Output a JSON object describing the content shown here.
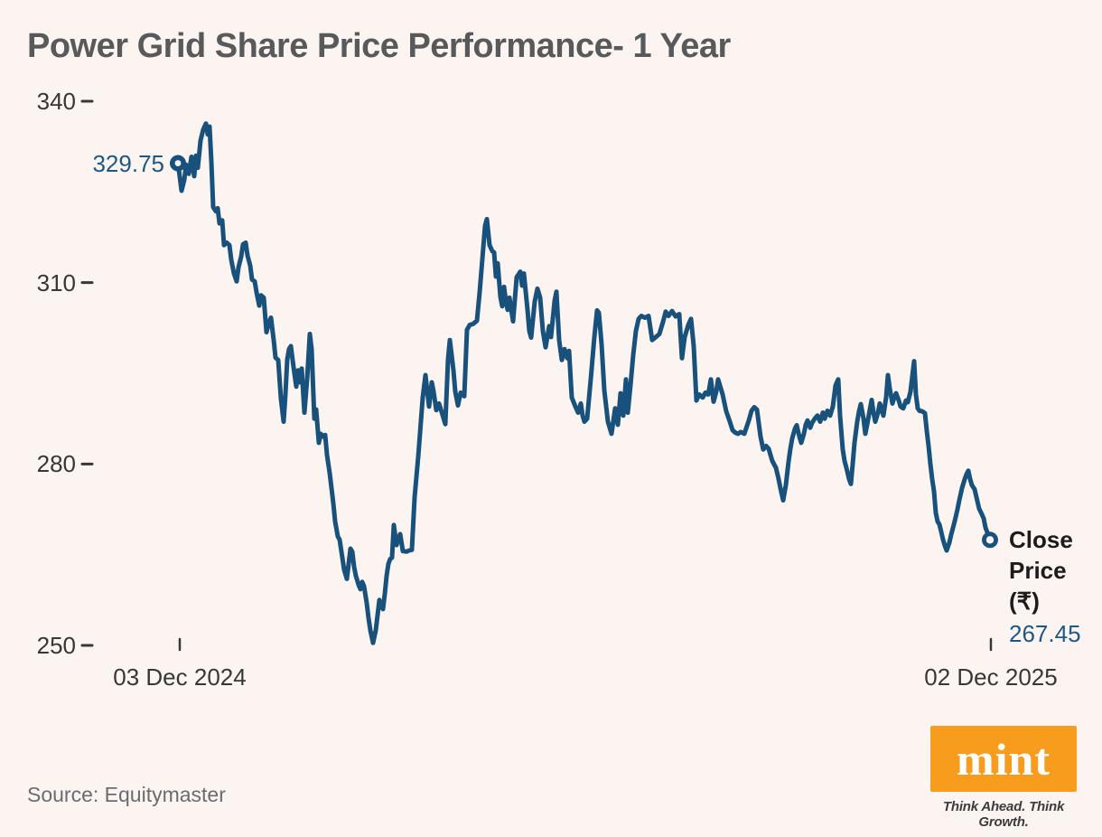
{
  "title": "Power Grid Share Price Performance- 1 Year",
  "source": "Source: Equitymaster",
  "logo": {
    "text": "mint",
    "tagline": "Think Ahead. Think Growth."
  },
  "close_price": {
    "label_lines": [
      "Close",
      "Price",
      "(₹)"
    ],
    "value": "267.45"
  },
  "colors": {
    "line": "#17517C",
    "background": "#FBF4F1",
    "accent_blue": "#1D5887",
    "title_gray": "#58595B",
    "axis_text": "#3A3637",
    "mint_orange": "#F89C1E"
  },
  "chart_data": {
    "type": "line",
    "title": "Power Grid Share Price Performance- 1 Year",
    "series_name": "Close Price (₹)",
    "x_start_label": "03 Dec 2024",
    "x_end_label": "02 Dec 2025",
    "x_domain": [
      197,
      1096
    ],
    "x_unit": "linear time position between start and end date labels",
    "y_ticks": [
      340,
      310,
      280,
      250
    ],
    "ylim": [
      248,
      342
    ],
    "start_label": "329.75",
    "start_value": 329.75,
    "end_value": 267.45,
    "grid": false,
    "legend": false,
    "points": [
      [
        197,
        329.75
      ],
      [
        199,
        327.5
      ],
      [
        201,
        325.2
      ],
      [
        204,
        327
      ],
      [
        206,
        329.5
      ],
      [
        209,
        328
      ],
      [
        212,
        330.8
      ],
      [
        215,
        327.6
      ],
      [
        217,
        331
      ],
      [
        219,
        329
      ],
      [
        222,
        333.5
      ],
      [
        225,
        335.3
      ],
      [
        228,
        336.3
      ],
      [
        230,
        334.5
      ],
      [
        232,
        335.8
      ],
      [
        234,
        330
      ],
      [
        236,
        322.5
      ],
      [
        239,
        321.8
      ],
      [
        241,
        322.3
      ],
      [
        243,
        319.8
      ],
      [
        246,
        320.3
      ],
      [
        248,
        316.2
      ],
      [
        251,
        316.6
      ],
      [
        254,
        316.2
      ],
      [
        256,
        313.8
      ],
      [
        259,
        311.5
      ],
      [
        262,
        310.2
      ],
      [
        264,
        312.5
      ],
      [
        267,
        314.3
      ],
      [
        269,
        316.3
      ],
      [
        272,
        316.6
      ],
      [
        274,
        314.5
      ],
      [
        277,
        312.8
      ],
      [
        279,
        310.5
      ],
      [
        282,
        310.2
      ],
      [
        284,
        308.4
      ],
      [
        287,
        306.2
      ],
      [
        289,
        307.9
      ],
      [
        292,
        307.5
      ],
      [
        295,
        301.8
      ],
      [
        298,
        303.5
      ],
      [
        300,
        304.2
      ],
      [
        303,
        300.5
      ],
      [
        305,
        297.6
      ],
      [
        308,
        297.2
      ],
      [
        311,
        290.8
      ],
      [
        314,
        287
      ],
      [
        316,
        291.5
      ],
      [
        318,
        297.3
      ],
      [
        320,
        299
      ],
      [
        322,
        299.5
      ],
      [
        325,
        296
      ],
      [
        328,
        292.8
      ],
      [
        330,
        295.5
      ],
      [
        332,
        293.5
      ],
      [
        334,
        295.8
      ],
      [
        337,
        288.5
      ],
      [
        340,
        294
      ],
      [
        343,
        301.5
      ],
      [
        345,
        299
      ],
      [
        348,
        287.5
      ],
      [
        350,
        289
      ],
      [
        353,
        283.5
      ],
      [
        355,
        285
      ],
      [
        358,
        284.5
      ],
      [
        360,
        284.8
      ],
      [
        362,
        281.5
      ],
      [
        365,
        278.5
      ],
      [
        367,
        276
      ],
      [
        369,
        273.5
      ],
      [
        371,
        270.5
      ],
      [
        374,
        268
      ],
      [
        376,
        267.5
      ],
      [
        379,
        264.5
      ],
      [
        381,
        262.5
      ],
      [
        384,
        261
      ],
      [
        386,
        263.5
      ],
      [
        388,
        266
      ],
      [
        390,
        265.5
      ],
      [
        392,
        263
      ],
      [
        394,
        261.5
      ],
      [
        397,
        260
      ],
      [
        399,
        259.3
      ],
      [
        401,
        260.5
      ],
      [
        403,
        259.8
      ],
      [
        406,
        257
      ],
      [
        408,
        254.5
      ],
      [
        410,
        252.5
      ],
      [
        413,
        250.4
      ],
      [
        416,
        252.5
      ],
      [
        418,
        255
      ],
      [
        420,
        257.5
      ],
      [
        422,
        256.5
      ],
      [
        424,
        256
      ],
      [
        426,
        258.5
      ],
      [
        428,
        261.5
      ],
      [
        430,
        263.5
      ],
      [
        432,
        264.3
      ],
      [
        434,
        264.5
      ],
      [
        436,
        269.9
      ],
      [
        439,
        266.6
      ],
      [
        443,
        268.4
      ],
      [
        446,
        265.6
      ],
      [
        450,
        265.5
      ],
      [
        453,
        265.7
      ],
      [
        456,
        265.8
      ],
      [
        459,
        274.5
      ],
      [
        463,
        281.2
      ],
      [
        468,
        291
      ],
      [
        471,
        294.7
      ],
      [
        475,
        289.5
      ],
      [
        478,
        293.5
      ],
      [
        480,
        292
      ],
      [
        483,
        288.9
      ],
      [
        486,
        290
      ],
      [
        490,
        288.1
      ],
      [
        493,
        286.6
      ],
      [
        496,
        297.3
      ],
      [
        498,
        300.5
      ],
      [
        502,
        295.5
      ],
      [
        504,
        292
      ],
      [
        507,
        289.7
      ],
      [
        510,
        291.8
      ],
      [
        514,
        291.2
      ],
      [
        517,
        302.2
      ],
      [
        520,
        303
      ],
      [
        524,
        303.2
      ],
      [
        528,
        303.7
      ],
      [
        531,
        308.4
      ],
      [
        534,
        313.9
      ],
      [
        537,
        319.4
      ],
      [
        539,
        320.5
      ],
      [
        542,
        316.2
      ],
      [
        545,
        315.2
      ],
      [
        547,
        315
      ],
      [
        549,
        311
      ],
      [
        551,
        313.2
      ],
      [
        554,
        307.6
      ],
      [
        556,
        306.1
      ],
      [
        558,
        309.3
      ],
      [
        560,
        307
      ],
      [
        562,
        305.5
      ],
      [
        564,
        307.5
      ],
      [
        568,
        303.6
      ],
      [
        572,
        310.9
      ],
      [
        576,
        311.8
      ],
      [
        578,
        309.5
      ],
      [
        580,
        311.5
      ],
      [
        584,
        305.5
      ],
      [
        586,
        302
      ],
      [
        588,
        300.9
      ],
      [
        592,
        306.9
      ],
      [
        595,
        309
      ],
      [
        598,
        307.5
      ],
      [
        601,
        302
      ],
      [
        604,
        299.3
      ],
      [
        608,
        302.8
      ],
      [
        610,
        301
      ],
      [
        614,
        307
      ],
      [
        616,
        308.5
      ],
      [
        619,
        300.5
      ],
      [
        622,
        297.2
      ],
      [
        625,
        299
      ],
      [
        628,
        297.5
      ],
      [
        630,
        298.7
      ],
      [
        633,
        291
      ],
      [
        637,
        289.5
      ],
      [
        640,
        288.5
      ],
      [
        643,
        290
      ],
      [
        645,
        288
      ],
      [
        647,
        287
      ],
      [
        650,
        287.5
      ],
      [
        654,
        294
      ],
      [
        658,
        301
      ],
      [
        661,
        305.4
      ],
      [
        663,
        305
      ],
      [
        666,
        299.8
      ],
      [
        669,
        292.2
      ],
      [
        673,
        287
      ],
      [
        677,
        285
      ],
      [
        681,
        289.2
      ],
      [
        684,
        286.5
      ],
      [
        687,
        291.7
      ],
      [
        690,
        288
      ],
      [
        693,
        294
      ],
      [
        695,
        288.5
      ],
      [
        698,
        293
      ],
      [
        701,
        298
      ],
      [
        704,
        302
      ],
      [
        707,
        304
      ],
      [
        710,
        304.5
      ],
      [
        714,
        304.2
      ],
      [
        718,
        304.5
      ],
      [
        722,
        300.5
      ],
      [
        726,
        301
      ],
      [
        730,
        301.5
      ],
      [
        734,
        303.5
      ],
      [
        737,
        305.2
      ],
      [
        740,
        304.5
      ],
      [
        744,
        305.3
      ],
      [
        748,
        304.4
      ],
      [
        752,
        304.8
      ],
      [
        755,
        297.5
      ],
      [
        758,
        301
      ],
      [
        762,
        303
      ],
      [
        765,
        304
      ],
      [
        768,
        299.5
      ],
      [
        771,
        290.5
      ],
      [
        774,
        291.5
      ],
      [
        778,
        291
      ],
      [
        781,
        291.8
      ],
      [
        784,
        291.5
      ],
      [
        787,
        294
      ],
      [
        790,
        290.3
      ],
      [
        793,
        292
      ],
      [
        795,
        294
      ],
      [
        798,
        292.5
      ],
      [
        800,
        291.5
      ],
      [
        804,
        288.7
      ],
      [
        808,
        287
      ],
      [
        811,
        285.6
      ],
      [
        814,
        285.2
      ],
      [
        817,
        285
      ],
      [
        820,
        285.3
      ],
      [
        824,
        285
      ],
      [
        829,
        287.2
      ],
      [
        832,
        288.8
      ],
      [
        835,
        289.4
      ],
      [
        838,
        289
      ],
      [
        842,
        284.5
      ],
      [
        845,
        282.4
      ],
      [
        848,
        283
      ],
      [
        851,
        282.5
      ],
      [
        855,
        280.5
      ],
      [
        859,
        279.4
      ],
      [
        862,
        277.5
      ],
      [
        864,
        276
      ],
      [
        867,
        274
      ],
      [
        870,
        276.5
      ],
      [
        873,
        280.4
      ],
      [
        875,
        282.5
      ],
      [
        877,
        284.2
      ],
      [
        880,
        285.8
      ],
      [
        882,
        286.4
      ],
      [
        885,
        284.5
      ],
      [
        887,
        283.5
      ],
      [
        890,
        285
      ],
      [
        892,
        286.5
      ],
      [
        894,
        287.2
      ],
      [
        897,
        286
      ],
      [
        899,
        286.8
      ],
      [
        902,
        287.5
      ],
      [
        905,
        288
      ],
      [
        908,
        287
      ],
      [
        911,
        288.5
      ],
      [
        913,
        287.5
      ],
      [
        916,
        288.8
      ],
      [
        919,
        288
      ],
      [
        922,
        289.5
      ],
      [
        925,
        293
      ],
      [
        928,
        294
      ],
      [
        930,
        288
      ],
      [
        933,
        282.4
      ],
      [
        935,
        280.5
      ],
      [
        937,
        279.4
      ],
      [
        940,
        277.5
      ],
      [
        942,
        276.7
      ],
      [
        944,
        280
      ],
      [
        946,
        283.5
      ],
      [
        949,
        287
      ],
      [
        951,
        288.7
      ],
      [
        953,
        289.9
      ],
      [
        956,
        287.5
      ],
      [
        958,
        285
      ],
      [
        960,
        286.5
      ],
      [
        963,
        289
      ],
      [
        965,
        290.6
      ],
      [
        967,
        288.5
      ],
      [
        969,
        287
      ],
      [
        972,
        288.5
      ],
      [
        974,
        290
      ],
      [
        976,
        289
      ],
      [
        978,
        288
      ],
      [
        981,
        291
      ],
      [
        983,
        294.7
      ],
      [
        985,
        292.5
      ],
      [
        988,
        290
      ],
      [
        990,
        291
      ],
      [
        992,
        291.7
      ],
      [
        995,
        290.5
      ],
      [
        997,
        289.5
      ],
      [
        1000,
        289.2
      ],
      [
        1003,
        290.5
      ],
      [
        1005,
        290.2
      ],
      [
        1008,
        292
      ],
      [
        1010,
        294.5
      ],
      [
        1012,
        297
      ],
      [
        1014,
        291.5
      ],
      [
        1016,
        289.2
      ],
      [
        1018,
        288.8
      ],
      [
        1021,
        288.7
      ],
      [
        1024,
        288.4
      ],
      [
        1026,
        285.5
      ],
      [
        1028,
        283
      ],
      [
        1030,
        280
      ],
      [
        1032,
        277.5
      ],
      [
        1034,
        275.5
      ],
      [
        1036,
        271.9
      ],
      [
        1038,
        270.5
      ],
      [
        1040,
        270
      ],
      [
        1042,
        268.8
      ],
      [
        1044,
        267.5
      ],
      [
        1046,
        266.5
      ],
      [
        1048,
        265.7
      ],
      [
        1051,
        267
      ],
      [
        1053,
        268.3
      ],
      [
        1056,
        270
      ],
      [
        1058,
        271.2
      ],
      [
        1060,
        272.5
      ],
      [
        1062,
        274
      ],
      [
        1065,
        276
      ],
      [
        1068,
        277.5
      ],
      [
        1070,
        278.3
      ],
      [
        1072,
        278.9
      ],
      [
        1074,
        277.5
      ],
      [
        1076,
        276.5
      ],
      [
        1079,
        275.8
      ],
      [
        1081,
        274.5
      ],
      [
        1084,
        272.6
      ],
      [
        1086,
        272
      ],
      [
        1089,
        271
      ],
      [
        1091,
        269.5
      ],
      [
        1094,
        268.3
      ],
      [
        1096,
        267.45
      ]
    ]
  }
}
